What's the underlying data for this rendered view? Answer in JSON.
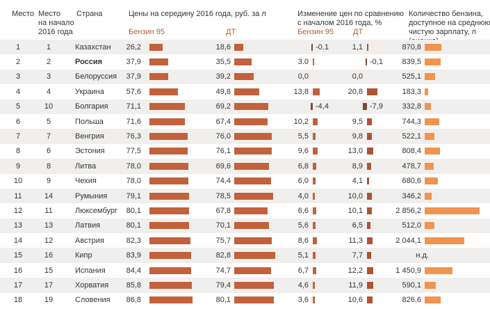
{
  "page": {
    "background": "#ffffff"
  },
  "header": {
    "rank": "Место",
    "rank_2016": "Место\nна начало\n2016 года",
    "country": "Страна",
    "prices": "Цены на середину 2016 года, руб. за л",
    "prices_sub_petrol": "Бензин 95",
    "prices_sub_diesel": "ДТ",
    "change": "Изменение цен по сравнению\nс началом 2016 года, %",
    "change_sub_petrol": "Бензин 95",
    "change_sub_diesel": "ДТ",
    "qty": "Количество бензина,\nдоступное на среднюю\nчистую зарплату, л (оценка)"
  },
  "colors": {
    "price_bar": "#c2613c",
    "change_positive_petrol": "#c2613c",
    "change_positive_diesel": "#ad5433",
    "change_negative": "#7c4a38",
    "qty_bar": "#f0944f",
    "subheader_text": "#b5602f",
    "zebra_row": "#f0efed",
    "text": "#333333"
  },
  "chart_data": {
    "type": "table",
    "columns": [
      "Место",
      "Место на начало 2016 года",
      "Страна",
      "Бензин 95, руб. за л",
      "ДТ, руб. за л",
      "Изменение Бензин 95, %",
      "Изменение ДТ, %",
      "Количество бензина, л"
    ],
    "rows": [
      {
        "rank": "1",
        "rank_2016": "1",
        "country": "Казахстан",
        "bold": false,
        "petrol_price": "26,2",
        "diesel_price": "18,6",
        "petrol_change": "-0.1",
        "diesel_change": "1,1",
        "qty": "870,8"
      },
      {
        "rank": "2",
        "rank_2016": "2",
        "country": "Россия",
        "bold": true,
        "petrol_price": "37,9",
        "diesel_price": "35,5",
        "petrol_change": "3.0",
        "diesel_change": "-0,1",
        "qty": "839,5"
      },
      {
        "rank": "3",
        "rank_2016": "3",
        "country": "Белоруссия",
        "bold": false,
        "petrol_price": "37,9",
        "diesel_price": "39,2",
        "petrol_change": "0,0",
        "diesel_change": "0,0",
        "qty": "525,1"
      },
      {
        "rank": "4",
        "rank_2016": "4",
        "country": "Украина",
        "bold": false,
        "petrol_price": "57,6",
        "diesel_price": "49,8",
        "petrol_change": "13,8",
        "diesel_change": "20,8",
        "qty": "183,3"
      },
      {
        "rank": "5",
        "rank_2016": "10",
        "country": "Болгария",
        "bold": false,
        "petrol_price": "71,1",
        "diesel_price": "69,2",
        "petrol_change": "-4,4",
        "diesel_change": "-7,9",
        "qty": "332,8"
      },
      {
        "rank": "6",
        "rank_2016": "5",
        "country": "Польша",
        "bold": false,
        "petrol_price": "71,6",
        "diesel_price": "67,4",
        "petrol_change": "10,2",
        "diesel_change": "9,5",
        "qty": "744,3"
      },
      {
        "rank": "7",
        "rank_2016": "7",
        "country": "Венгрия",
        "bold": false,
        "petrol_price": "76,3",
        "diesel_price": "76,0",
        "petrol_change": "5,5",
        "diesel_change": "9,8",
        "qty": "522,1"
      },
      {
        "rank": "8",
        "rank_2016": "6",
        "country": "Эстония",
        "bold": false,
        "petrol_price": "77,5",
        "diesel_price": "76,1",
        "petrol_change": "9,6",
        "diesel_change": "13,0",
        "qty": "808,4"
      },
      {
        "rank": "9",
        "rank_2016": "8",
        "country": "Литва",
        "bold": false,
        "petrol_price": "78,0",
        "diesel_price": "69,6",
        "petrol_change": "6,8",
        "diesel_change": "8,9",
        "qty": "478,7"
      },
      {
        "rank": "10",
        "rank_2016": "9",
        "country": "Чехия",
        "bold": false,
        "petrol_price": "78,0",
        "diesel_price": "74,4",
        "petrol_change": "6,0",
        "diesel_change": "4,1",
        "qty": "680,6"
      },
      {
        "rank": "11",
        "rank_2016": "14",
        "country": "Румыния",
        "bold": false,
        "petrol_price": "79,1",
        "diesel_price": "78,5",
        "petrol_change": "4,0",
        "diesel_change": "10,0",
        "qty": "346,2"
      },
      {
        "rank": "12",
        "rank_2016": "11",
        "country": "Люксембург",
        "bold": false,
        "petrol_price": "80,1",
        "diesel_price": "67,8",
        "petrol_change": "6,6",
        "diesel_change": "10,1",
        "qty": "2 856,2"
      },
      {
        "rank": "13",
        "rank_2016": "13",
        "country": "Латвия",
        "bold": false,
        "petrol_price": "80,1",
        "diesel_price": "70,1",
        "petrol_change": "5,6",
        "diesel_change": "6,5",
        "qty": "512,0"
      },
      {
        "rank": "14",
        "rank_2016": "12",
        "country": "Австрия",
        "bold": false,
        "petrol_price": "82,3",
        "diesel_price": "75,7",
        "petrol_change": "8,6",
        "diesel_change": "11,3",
        "qty": "2 044,1"
      },
      {
        "rank": "15",
        "rank_2016": "16",
        "country": "Кипр",
        "bold": false,
        "petrol_price": "83,9",
        "diesel_price": "82,8",
        "petrol_change": "5,1",
        "diesel_change": "7,7",
        "qty": "н.д."
      },
      {
        "rank": "16",
        "rank_2016": "15",
        "country": "Испания",
        "bold": false,
        "petrol_price": "84,4",
        "diesel_price": "74,7",
        "petrol_change": "6,7",
        "diesel_change": "12,2",
        "qty": "1 450,9"
      },
      {
        "rank": "17",
        "rank_2016": "17",
        "country": "Хорватия",
        "bold": false,
        "petrol_price": "85,8",
        "diesel_price": "79,4",
        "petrol_change": "4,6",
        "diesel_change": "11,9",
        "qty": "590,1"
      },
      {
        "rank": "18",
        "rank_2016": "19",
        "country": "Словения",
        "bold": false,
        "petrol_price": "86,8",
        "diesel_price": "80,1",
        "petrol_change": "3,6",
        "diesel_change": "10,6",
        "qty": "826,6"
      }
    ]
  }
}
